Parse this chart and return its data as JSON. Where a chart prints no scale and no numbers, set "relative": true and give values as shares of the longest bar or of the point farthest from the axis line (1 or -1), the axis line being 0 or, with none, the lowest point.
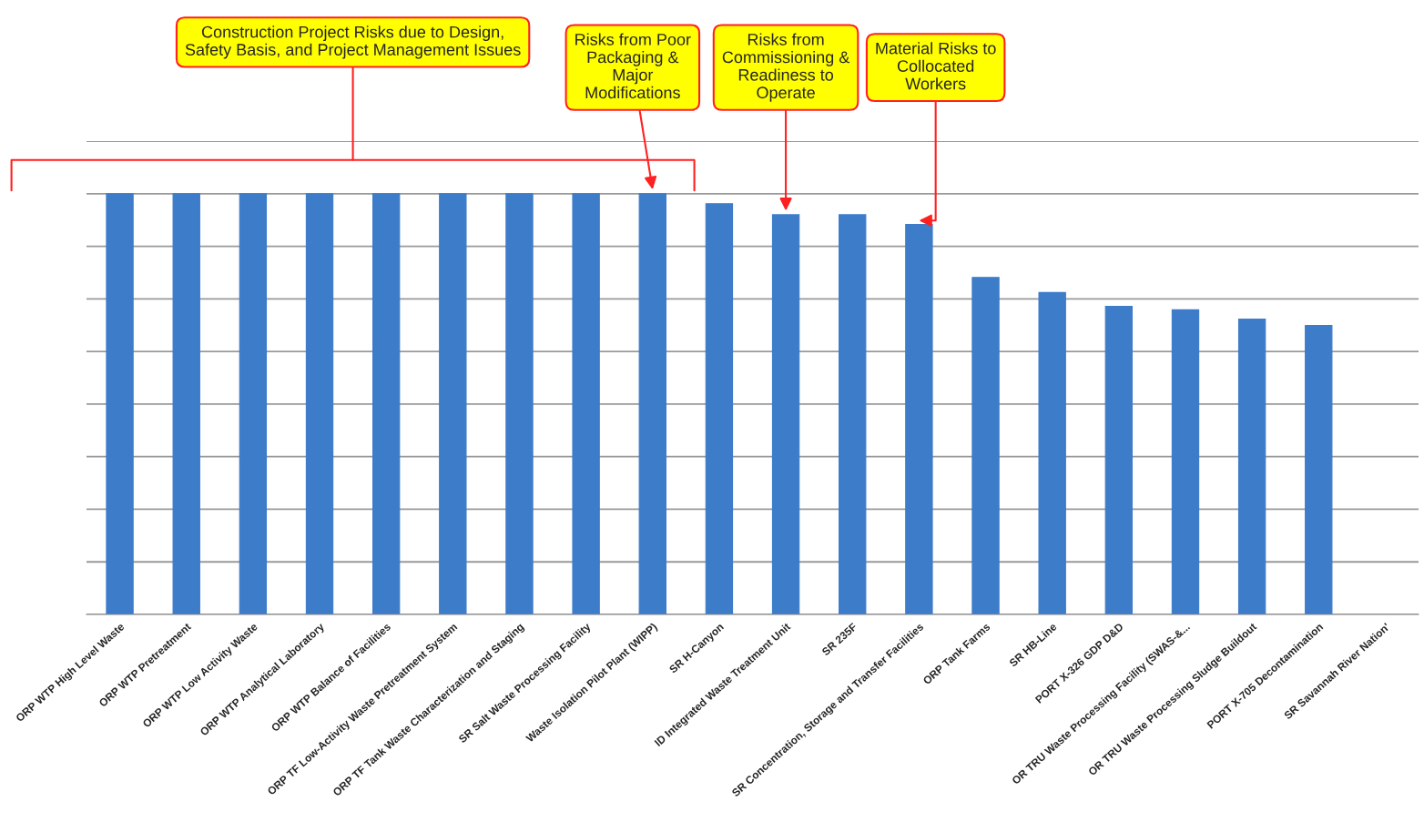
{
  "chart_data": {
    "type": "bar",
    "relative": true,
    "color": "#3d7cc9",
    "grid": "y",
    "categories": [
      "ORP WTP High Level Waste",
      "ORP WTP Pretreatment",
      "ORP WTP Low Activity Waste",
      "ORP WTP Analytical Laboratory",
      "ORP WTP Balance of Facilities",
      "ORP TF Low-Activity Waste Pretreatment System",
      "ORP TF Tank Waste Characterization and Staging",
      "SR Salt Waste Processing Facility",
      "Waste Isolation Pilot Plant (WIPP)",
      "SR H-Canyon",
      "ID Integrated Waste Treatment Unit",
      "SR 235F",
      "SR Concentration, Storage and Transfer Facilities",
      "ORP Tank Farms",
      "SR HB-Line",
      "PORT X-326 GDP D&D",
      "OR TRU Waste Processing Facility (SWAS-&...",
      "OR TRU Waste Processing Sludge Buildout",
      "PORT X-705 Decontamination",
      "SR Savannah River Nation'"
    ],
    "values": [
      1,
      1,
      1,
      1,
      1,
      1,
      1,
      1,
      1,
      0.976,
      0.95,
      0.95,
      0.927,
      0.801,
      0.765,
      0.732,
      0.724,
      0.702,
      0.687,
      null
    ],
    "annotations": [
      "Construction Project Risks due to Design,\nSafety Basis, and Project Management Issues",
      {
        "text": "Risks from Poor\nPackaging &\nMajor\nModifications",
        "x": "Waste Isolation Pilot Plant (WIPP)",
        "y": 1
      },
      {
        "text": "Risks from\nCommissioning &\nReadiness to\nOperate",
        "x": "ID Integrated Waste Treatment Unit",
        "y": 0.95
      },
      {
        "text": "Material Risks to\nCollocated\nWorkers",
        "x": "SR Concentration, Storage and Transfer Facilities",
        "y": 0.927
      }
    ]
  }
}
